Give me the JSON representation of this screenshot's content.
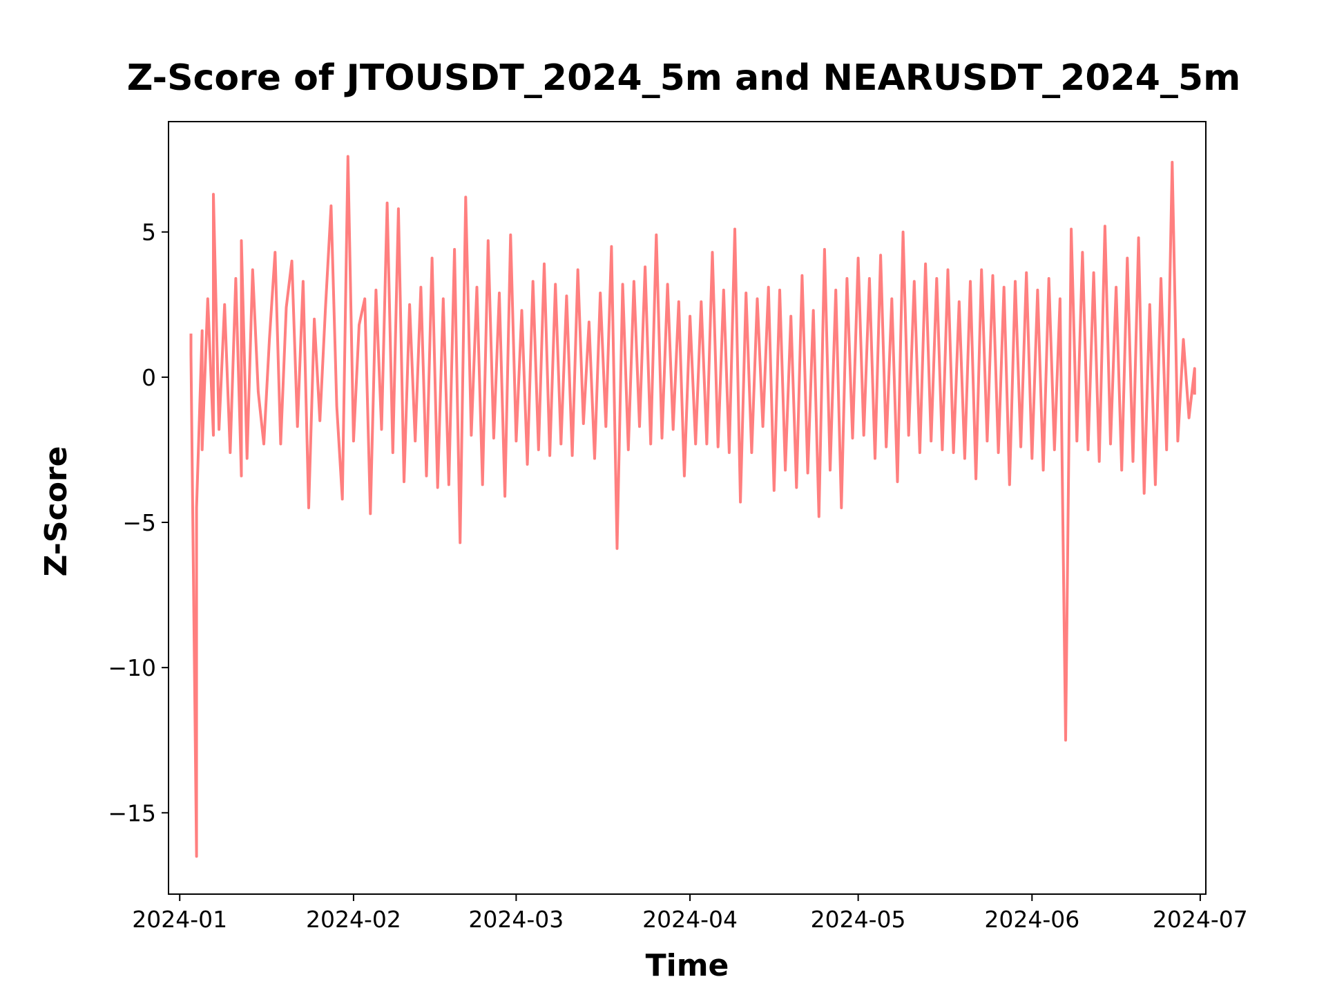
{
  "chart_data": {
    "type": "line",
    "title": "Z-Score of JTOUSDT_2024_5m and NEARUSDT_2024_5m",
    "xlabel": "Time",
    "ylabel": "Z-Score",
    "x_ticks": [
      "2024-01",
      "2024-02",
      "2024-03",
      "2024-04",
      "2024-05",
      "2024-06",
      "2024-07"
    ],
    "y_ticks": [
      "−15",
      "−10",
      "−5",
      "0",
      "5"
    ],
    "xlim": [
      "2023-12-30",
      "2024-07-02"
    ],
    "ylim": [
      -17.8,
      8.8
    ],
    "grid": false,
    "legend": "none",
    "series": [
      {
        "color": "#ff7f7f",
        "x": [
          "2024-01-03",
          "2024-01-03",
          "2024-01-04",
          "2024-01-04",
          "2024-01-05",
          "2024-01-05",
          "2024-01-06",
          "2024-01-07",
          "2024-01-07",
          "2024-01-08",
          "2024-01-09",
          "2024-01-10",
          "2024-01-11",
          "2024-01-12",
          "2024-01-12",
          "2024-01-13",
          "2024-01-14",
          "2024-01-15",
          "2024-01-16",
          "2024-01-17",
          "2024-01-18",
          "2024-01-19",
          "2024-01-20",
          "2024-01-21",
          "2024-01-22",
          "2024-01-23",
          "2024-01-24",
          "2024-01-25",
          "2024-01-26",
          "2024-01-27",
          "2024-01-28",
          "2024-01-29",
          "2024-01-30",
          "2024-01-31",
          "2024-02-01",
          "2024-02-02",
          "2024-02-03",
          "2024-02-04",
          "2024-02-05",
          "2024-02-06",
          "2024-02-07",
          "2024-02-08",
          "2024-02-09",
          "2024-02-10",
          "2024-02-11",
          "2024-02-12",
          "2024-02-13",
          "2024-02-14",
          "2024-02-15",
          "2024-02-16",
          "2024-02-17",
          "2024-02-18",
          "2024-02-19",
          "2024-02-20",
          "2024-02-21",
          "2024-02-22",
          "2024-02-23",
          "2024-02-24",
          "2024-02-25",
          "2024-02-26",
          "2024-02-27",
          "2024-02-28",
          "2024-02-29",
          "2024-03-01",
          "2024-03-02",
          "2024-03-03",
          "2024-03-04",
          "2024-03-05",
          "2024-03-06",
          "2024-03-07",
          "2024-03-08",
          "2024-03-09",
          "2024-03-10",
          "2024-03-11",
          "2024-03-12",
          "2024-03-13",
          "2024-03-14",
          "2024-03-15",
          "2024-03-16",
          "2024-03-17",
          "2024-03-18",
          "2024-03-19",
          "2024-03-20",
          "2024-03-21",
          "2024-03-22",
          "2024-03-23",
          "2024-03-24",
          "2024-03-25",
          "2024-03-26",
          "2024-03-27",
          "2024-03-28",
          "2024-03-29",
          "2024-03-30",
          "2024-03-31",
          "2024-04-01",
          "2024-04-02",
          "2024-04-03",
          "2024-04-04",
          "2024-04-05",
          "2024-04-06",
          "2024-04-07",
          "2024-04-08",
          "2024-04-09",
          "2024-04-10",
          "2024-04-11",
          "2024-04-12",
          "2024-04-13",
          "2024-04-14",
          "2024-04-15",
          "2024-04-16",
          "2024-04-17",
          "2024-04-18",
          "2024-04-19",
          "2024-04-20",
          "2024-04-21",
          "2024-04-22",
          "2024-04-23",
          "2024-04-24",
          "2024-04-25",
          "2024-04-26",
          "2024-04-27",
          "2024-04-28",
          "2024-04-29",
          "2024-04-30",
          "2024-05-01",
          "2024-05-02",
          "2024-05-03",
          "2024-05-04",
          "2024-05-05",
          "2024-05-06",
          "2024-05-07",
          "2024-05-08",
          "2024-05-09",
          "2024-05-10",
          "2024-05-11",
          "2024-05-12",
          "2024-05-13",
          "2024-05-14",
          "2024-05-15",
          "2024-05-16",
          "2024-05-17",
          "2024-05-18",
          "2024-05-19",
          "2024-05-20",
          "2024-05-21",
          "2024-05-22",
          "2024-05-23",
          "2024-05-24",
          "2024-05-25",
          "2024-05-26",
          "2024-05-27",
          "2024-05-28",
          "2024-05-29",
          "2024-05-30",
          "2024-05-31",
          "2024-06-01",
          "2024-06-02",
          "2024-06-03",
          "2024-06-04",
          "2024-06-05",
          "2024-06-06",
          "2024-06-07",
          "2024-06-08",
          "2024-06-09",
          "2024-06-10",
          "2024-06-11",
          "2024-06-12",
          "2024-06-13",
          "2024-06-14",
          "2024-06-15",
          "2024-06-16",
          "2024-06-17",
          "2024-06-18",
          "2024-06-19",
          "2024-06-20",
          "2024-06-21",
          "2024-06-22",
          "2024-06-23",
          "2024-06-24",
          "2024-06-25",
          "2024-06-26",
          "2024-06-27",
          "2024-06-28",
          "2024-06-29",
          "2024-06-30",
          "2024-06-30"
        ],
        "y": [
          1.5,
          0.8,
          -16.5,
          -4.5,
          1.6,
          -2.5,
          2.7,
          -2.0,
          6.3,
          -1.8,
          2.5,
          -2.6,
          3.4,
          -3.4,
          4.7,
          -2.8,
          3.7,
          -0.5,
          -2.3,
          1.3,
          4.3,
          -2.3,
          2.4,
          4.0,
          -1.7,
          3.3,
          -4.5,
          2.0,
          -1.5,
          2.4,
          5.9,
          -1.0,
          -4.2,
          7.6,
          -2.2,
          1.8,
          2.7,
          -4.7,
          3.0,
          -1.8,
          6.0,
          -2.6,
          5.8,
          -3.6,
          2.5,
          -2.2,
          3.1,
          -3.4,
          4.1,
          -3.8,
          2.7,
          -3.7,
          4.4,
          -5.7,
          6.2,
          -2.0,
          3.1,
          -3.7,
          4.7,
          -2.1,
          2.9,
          -4.1,
          4.9,
          -2.2,
          2.3,
          -3.0,
          3.3,
          -2.5,
          3.9,
          -2.7,
          3.2,
          -2.3,
          2.8,
          -2.7,
          3.7,
          -1.6,
          1.9,
          -2.8,
          2.9,
          -1.7,
          4.5,
          -5.9,
          3.2,
          -2.5,
          3.3,
          -1.7,
          3.8,
          -2.3,
          4.9,
          -2.1,
          3.2,
          -1.8,
          2.6,
          -3.4,
          2.1,
          -2.3,
          2.6,
          -2.3,
          4.3,
          -2.4,
          3.0,
          -2.6,
          5.1,
          -4.3,
          2.9,
          -2.6,
          2.7,
          -1.7,
          3.1,
          -3.9,
          3.0,
          -3.2,
          2.1,
          -3.8,
          3.5,
          -3.3,
          2.3,
          -4.8,
          4.4,
          -3.2,
          3.0,
          -4.5,
          3.4,
          -2.1,
          4.1,
          -2.0,
          3.4,
          -2.8,
          4.2,
          -2.4,
          2.7,
          -3.6,
          5.0,
          -2.0,
          3.3,
          -2.6,
          3.9,
          -2.2,
          3.4,
          -2.5,
          3.7,
          -2.6,
          2.6,
          -2.8,
          3.3,
          -3.5,
          3.7,
          -2.2,
          3.5,
          -2.6,
          3.1,
          -3.7,
          3.3,
          -2.4,
          3.6,
          -2.8,
          3.0,
          -3.2,
          3.4,
          -2.5,
          2.7,
          -12.5,
          5.1,
          -2.2,
          4.3,
          -2.5,
          3.6,
          -2.9,
          5.2,
          -2.3,
          3.1,
          -3.2,
          4.1,
          -2.9,
          4.8,
          -4.0,
          2.5,
          -3.7,
          3.4,
          -2.5,
          7.4,
          -2.2,
          1.3,
          -1.4,
          0.3,
          -0.6
        ]
      }
    ]
  }
}
